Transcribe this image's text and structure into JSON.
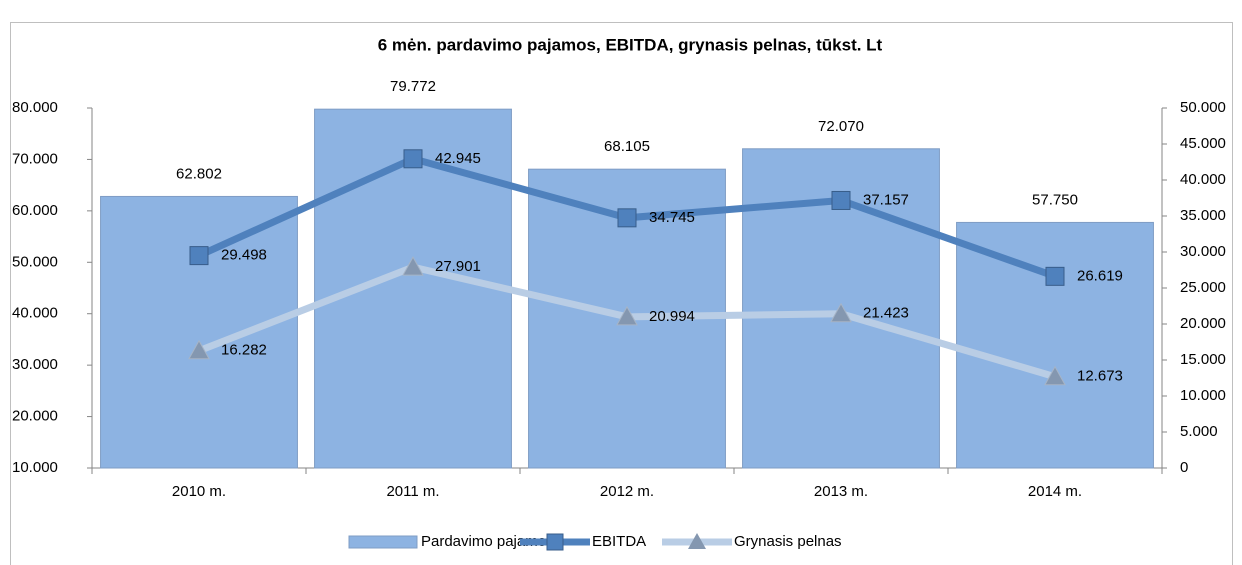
{
  "chart_data": {
    "type": "bar",
    "title": "6 mėn. pardavimo pajamos, EBITDA, grynasis pelnas, tūkst. Lt",
    "categories": [
      "2010 m.",
      "2011 m.",
      "2012 m.",
      "2013 m.",
      "2014 m."
    ],
    "series": [
      {
        "name": "Pardavimo pajamos",
        "type": "bar",
        "axis": "y",
        "color": "#8db3e2",
        "values": [
          62802,
          79772,
          68105,
          72070,
          57750
        ],
        "value_labels": [
          "62.802",
          "79.772",
          "68.105",
          "72.070",
          "57.750"
        ]
      },
      {
        "name": "EBITDA",
        "type": "line",
        "axis": "y2",
        "color": "#4f81bd",
        "marker": "square",
        "values": [
          29498,
          42945,
          34745,
          37157,
          26619
        ],
        "value_labels": [
          "29.498",
          "42.945",
          "34.745",
          "37.157",
          "26.619"
        ]
      },
      {
        "name": "Grynasis pelnas",
        "type": "line",
        "axis": "y2",
        "color": "#b9cde5",
        "marker": "triangle",
        "values": [
          16282,
          27901,
          20994,
          21423,
          12673
        ],
        "value_labels": [
          "16.282",
          "27.901",
          "20.994",
          "21.423",
          "12.673"
        ]
      }
    ],
    "ylim": [
      10000,
      80000
    ],
    "yticks": [
      {
        "value": 10000,
        "label": "10.000"
      },
      {
        "value": 20000,
        "label": "20.000"
      },
      {
        "value": 30000,
        "label": "30.000"
      },
      {
        "value": 40000,
        "label": "40.000"
      },
      {
        "value": 50000,
        "label": "50.000"
      },
      {
        "value": 60000,
        "label": "60.000"
      },
      {
        "value": 70000,
        "label": "70.000"
      },
      {
        "value": 80000,
        "label": "80.000"
      }
    ],
    "y2lim": [
      0,
      50000
    ],
    "y2ticks": [
      0,
      {
        "value": 5000,
        "label": "5.000"
      },
      {
        "value": 10000,
        "label": "10.000"
      },
      {
        "value": 15000,
        "label": "15.000"
      },
      {
        "value": 20000,
        "label": "20.000"
      },
      {
        "value": 25000,
        "label": "25.000"
      },
      {
        "value": 30000,
        "label": "30.000"
      },
      {
        "value": 35000,
        "label": "35.000"
      },
      {
        "value": 40000,
        "label": "40.000"
      },
      {
        "value": 45000,
        "label": "45.000"
      },
      {
        "value": 50000,
        "label": "50.000"
      }
    ],
    "grid": false
  }
}
